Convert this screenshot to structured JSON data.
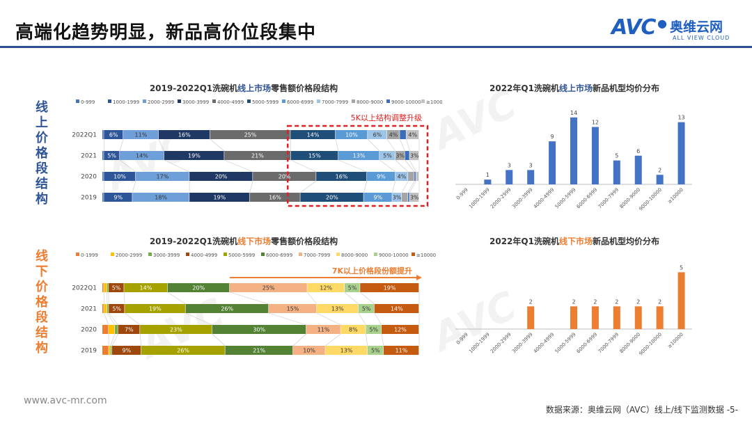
{
  "page": {
    "title": "高端化趋势明显，新品高价位段集中",
    "logo_mark": "AVC",
    "logo_cn": "奥维云网",
    "logo_en": "ALL VIEW CLOUD",
    "online_label": "线上价格段结构",
    "offline_label": "线下价格段结构",
    "website": "www.avc-mr.com",
    "source": "数据来源：奥维云网（AVC）线上/线下监测数据 -5-",
    "watermark": "AVC"
  },
  "colors": {
    "online_bar": "#4472c4",
    "offline_bar": "#ed7d31",
    "online_label": "#2f5597",
    "offline_label": "#ed7d31",
    "annotation_red": "#e02020"
  },
  "chart_data": [
    {
      "id": "online-structure",
      "type": "bar",
      "stacked": true,
      "orientation": "horizontal",
      "title_parts": [
        "2019-2022Q1洗碗机",
        "线上市场",
        "零售额价格段结构"
      ],
      "categories": [
        "2022Q1",
        "2021",
        "2020",
        "2019"
      ],
      "legend": [
        "0-999",
        "1000-1999",
        "2000-2999",
        "3000-3999",
        "4000-4999",
        "5000-5999",
        "6000-6999",
        "7000-7999",
        "8000-9000",
        "9000-10000",
        "≥10000"
      ],
      "legend_colors": [
        "#4472c4",
        "#2e5597",
        "#6f9fd8",
        "#203864",
        "#6b6b6b",
        "#1f4e79",
        "#5b9bd5",
        "#9dc3e6",
        "#a5a5a5",
        "#3a6ebd",
        "#c0c0c0"
      ],
      "series": [
        {
          "name": "0-999",
          "values": [
            0.5,
            0.5,
            0.5,
            0.5
          ]
        },
        {
          "name": "1000-1999",
          "values": [
            6,
            5,
            10,
            9
          ]
        },
        {
          "name": "2000-2999",
          "values": [
            11,
            14,
            17,
            18
          ]
        },
        {
          "name": "3000-3999",
          "values": [
            16,
            19,
            20,
            19
          ]
        },
        {
          "name": "4000-4999",
          "values": [
            25,
            21,
            20,
            16
          ]
        },
        {
          "name": "5000-5999",
          "values": [
            14,
            15,
            16,
            20
          ]
        },
        {
          "name": "6000-6999",
          "values": [
            10,
            13,
            9,
            9
          ]
        },
        {
          "name": "7000-7999",
          "values": [
            6,
            5,
            4,
            3
          ]
        },
        {
          "name": "8000-9000",
          "values": [
            4,
            3,
            2,
            2
          ]
        },
        {
          "name": "9000-10000",
          "values": [
            2,
            1.5,
            0.5,
            0.5
          ]
        },
        {
          "name": "≥10000",
          "values": [
            4,
            3,
            1,
            3
          ]
        }
      ],
      "annotation": "5K以上结构调整升级",
      "xlim": [
        0,
        100
      ]
    },
    {
      "id": "online-new-avg",
      "type": "bar",
      "title_parts": [
        "2022年Q1洗碗机",
        "线上市场",
        "新品机型均价分布"
      ],
      "categories": [
        "0-999",
        "1000-1999",
        "2000-2999",
        "3000-3999",
        "4000-4999",
        "5000-5999",
        "6000-6999",
        "7000-7999",
        "8000-9000",
        "9000-10000",
        "≥10000"
      ],
      "values": [
        0,
        1,
        3,
        3,
        9,
        14,
        12,
        5,
        6,
        2,
        13
      ],
      "ylim": [
        0,
        16
      ]
    },
    {
      "id": "offline-structure",
      "type": "bar",
      "stacked": true,
      "orientation": "horizontal",
      "title_parts": [
        "2019-2022Q1洗碗机",
        "线下市场",
        "零售额价格段结构"
      ],
      "categories": [
        "2022Q1",
        "2021",
        "2020",
        "2019"
      ],
      "legend": [
        "0-1999",
        "2000-2999",
        "3000-3999",
        "4000-4999",
        "5000-5999",
        "6000-6999",
        "7000-7999",
        "8000-9000",
        "9000-10000",
        "≥10000"
      ],
      "legend_colors": [
        "#ed7d31",
        "#ffc000",
        "#70ad47",
        "#9e480e",
        "#a5a200",
        "#548235",
        "#f4b183",
        "#ffd966",
        "#a9d18e",
        "#c55a11"
      ],
      "series": [
        {
          "name": "0-1999",
          "values": [
            0.5,
            0.5,
            2,
            2
          ]
        },
        {
          "name": "2000-2999",
          "values": [
            1,
            1,
            2,
            0.5
          ]
        },
        {
          "name": "3000-3999",
          "values": [
            0.5,
            0.5,
            1,
            0.5
          ]
        },
        {
          "name": "4000-4999",
          "values": [
            5,
            5,
            7,
            9
          ]
        },
        {
          "name": "5000-5999",
          "values": [
            14,
            19,
            23,
            26
          ]
        },
        {
          "name": "6000-6999",
          "values": [
            20,
            26,
            30,
            21
          ]
        },
        {
          "name": "7000-7999",
          "values": [
            25,
            15,
            11,
            10
          ]
        },
        {
          "name": "8000-9000",
          "values": [
            12,
            13,
            8,
            13
          ]
        },
        {
          "name": "9000-10000",
          "values": [
            5,
            5,
            5,
            5
          ]
        },
        {
          "name": "≥10000",
          "values": [
            19,
            14,
            12,
            11
          ]
        }
      ],
      "annotation": "7K以上价格段份额提升",
      "xlim": [
        0,
        100
      ]
    },
    {
      "id": "offline-new-avg",
      "type": "bar",
      "title_parts": [
        "2022年Q1洗碗机",
        "线下市场",
        "新品机型均价分布"
      ],
      "categories": [
        "0-999",
        "1000-1999",
        "2000-2999",
        "3000-3999",
        "4000-4999",
        "5000-5999",
        "6000-6999",
        "7000-7999",
        "8000-9000",
        "9000-10000",
        "≥10000"
      ],
      "values": [
        0,
        0,
        0,
        2,
        0,
        2,
        2,
        2,
        2,
        2,
        5
      ],
      "ylim": [
        0,
        6
      ]
    }
  ]
}
